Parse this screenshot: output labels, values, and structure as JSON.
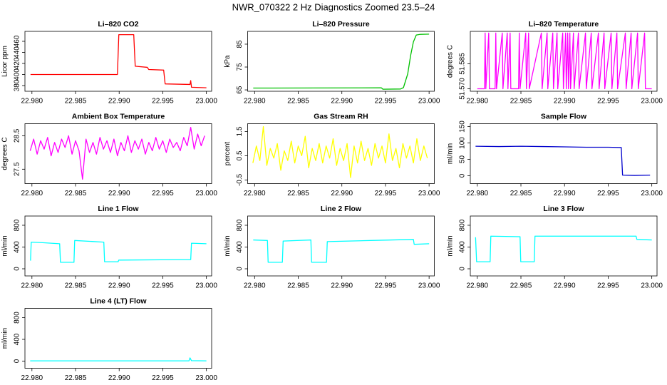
{
  "title": "NWR_070322  2 Hz Diagnostics Zoomed 23.5–24",
  "chart_data": [
    {
      "type": "line",
      "title": "Li–820 CO2",
      "ylabel": "Licor ppm",
      "color": "#ff0000",
      "x": [
        22.97984,
        22.98449,
        22.9898,
        22.98996,
        22.99167,
        22.99184,
        22.99322,
        22.99339,
        22.9951,
        22.99527,
        22.99812,
        22.9982,
        22.99829,
        23.0
      ],
      "values": [
        400,
        400,
        400,
        472,
        472,
        415,
        413,
        409,
        408,
        383,
        382,
        389,
        377,
        376
      ],
      "xlim": [
        22.9792,
        23.0006
      ],
      "ylim": [
        369.7,
        478
      ],
      "xticks": [
        {
          "value": 22.98,
          "label": "22.980"
        },
        {
          "value": 22.985,
          "label": "22.985"
        },
        {
          "value": 22.99,
          "label": "22.990"
        },
        {
          "value": 22.995,
          "label": "22.995"
        },
        {
          "value": 23.0,
          "label": "23.000"
        }
      ],
      "yticks": [
        380,
        400,
        420,
        440,
        460
      ]
    },
    {
      "type": "line",
      "title": "Li–820 Pressure",
      "ylabel": "kPa",
      "color": "#00c000",
      "x": [
        22.97984,
        22.99453,
        22.9947,
        22.99673,
        22.99706,
        22.99755,
        22.99788,
        22.9982,
        22.99853,
        22.99902,
        23.0
      ],
      "values": [
        65.8,
        65.9,
        65.3,
        65.4,
        66,
        72,
        80,
        86,
        89,
        89.3,
        89.4
      ],
      "xlim": [
        22.9792,
        23.0006
      ],
      "ylim": [
        64.4,
        90.6
      ],
      "xticks": [
        {
          "value": 22.98,
          "label": "22.980"
        },
        {
          "value": 22.985,
          "label": "22.985"
        },
        {
          "value": 22.99,
          "label": "22.990"
        },
        {
          "value": 22.995,
          "label": "22.995"
        },
        {
          "value": 23.0,
          "label": "23.000"
        }
      ],
      "yticks": [
        65,
        75,
        85
      ]
    },
    {
      "type": "line",
      "title": "Li–820 Temperature",
      "ylabel": "degrees C",
      "color": "#ff00ff",
      "x": [
        22.98,
        22.98082,
        22.9809,
        22.98098,
        22.98131,
        22.98139,
        22.98204,
        22.98212,
        22.9822,
        22.98286,
        22.98294,
        22.98343,
        22.98351,
        22.98376,
        22.98384,
        22.98473,
        22.98481,
        22.9849,
        22.98555,
        22.98563,
        22.98588,
        22.98596,
        22.98734,
        22.98743,
        22.988,
        22.98808,
        22.98865,
        22.98873,
        22.98914,
        22.98922,
        22.98979,
        22.98987,
        22.99012,
        22.9902,
        22.99036,
        22.99045,
        22.99061,
        22.99069,
        22.99102,
        22.9911,
        22.99159,
        22.99167,
        22.9924,
        22.99249,
        22.99306,
        22.99314,
        22.99388,
        22.99396,
        22.99453,
        22.99461,
        22.99534,
        22.99543,
        22.996,
        22.99608,
        22.99697,
        22.99706,
        22.99763,
        22.99771,
        22.99837,
        22.99845,
        22.99918,
        22.99927,
        23.0
      ],
      "values": [
        51.57,
        51.57,
        51.6035,
        51.57,
        51.6035,
        51.57,
        51.57,
        51.6035,
        51.57,
        51.6035,
        51.57,
        51.6035,
        51.57,
        51.6035,
        51.57,
        51.57,
        51.6035,
        51.57,
        51.6035,
        51.57,
        51.6035,
        51.57,
        51.6035,
        51.57,
        51.6035,
        51.57,
        51.6035,
        51.57,
        51.6035,
        51.57,
        51.6035,
        51.57,
        51.6035,
        51.57,
        51.6035,
        51.57,
        51.6035,
        51.57,
        51.6035,
        51.57,
        51.6035,
        51.57,
        51.6035,
        51.57,
        51.6035,
        51.57,
        51.6035,
        51.57,
        51.6035,
        51.57,
        51.6035,
        51.57,
        51.6035,
        51.57,
        51.6035,
        51.57,
        51.6035,
        51.57,
        51.6035,
        51.57,
        51.6035,
        51.57,
        51.57
      ],
      "xlim": [
        22.9792,
        23.0006
      ],
      "ylim": [
        51.5685,
        51.6045
      ],
      "xticks": [
        {
          "value": 22.98,
          "label": "22.980"
        },
        {
          "value": 22.985,
          "label": "22.985"
        },
        {
          "value": 22.99,
          "label": "22.990"
        },
        {
          "value": 22.995,
          "label": "22.995"
        },
        {
          "value": 23.0,
          "label": "23.000"
        }
      ],
      "yticks": [
        {
          "value": 51.57,
          "label": "51.570"
        },
        {
          "value": 51.585,
          "label": "51.585"
        }
      ]
    },
    {
      "type": "line",
      "title": "Ambient Box Temperature",
      "ylabel": "degrees C",
      "color": "#ff00ff",
      "x": [
        22.9798,
        22.9802,
        22.9806,
        22.981,
        22.9814,
        22.9818,
        22.9822,
        22.9826,
        22.983,
        22.9834,
        22.9838,
        22.9842,
        22.9846,
        22.985,
        22.9854,
        22.9858,
        22.9862,
        22.9866,
        22.987,
        22.9874,
        22.9878,
        22.9882,
        22.9886,
        22.989,
        22.9894,
        22.9898,
        22.9902,
        22.9906,
        22.991,
        22.9914,
        22.9918,
        22.9922,
        22.9926,
        22.993,
        22.9934,
        22.9938,
        22.9942,
        22.9946,
        22.995,
        22.9954,
        22.9958,
        22.9962,
        22.9966,
        22.997,
        22.9974,
        22.9978,
        22.9982,
        22.9986,
        22.999,
        22.9994,
        22.9998
      ],
      "values": [
        28.05,
        28.4,
        27.95,
        28.35,
        28.1,
        28.45,
        27.9,
        28.3,
        28.0,
        28.4,
        28.15,
        28.5,
        27.95,
        28.35,
        28.05,
        27.2,
        28.4,
        28.0,
        28.3,
        27.95,
        28.45,
        28.1,
        28.35,
        28.0,
        28.4,
        27.9,
        28.3,
        28.05,
        28.5,
        28.0,
        28.35,
        28.1,
        28.4,
        27.95,
        28.3,
        28.05,
        28.45,
        28.1,
        28.35,
        28.0,
        28.4,
        28.15,
        28.3,
        28.05,
        28.45,
        28.2,
        28.75,
        28.1,
        28.55,
        28.2,
        28.5
      ],
      "xlim": [
        22.9792,
        23.0006
      ],
      "ylim": [
        27.07,
        28.86
      ],
      "xticks": [
        {
          "value": 22.98,
          "label": "22.980"
        },
        {
          "value": 22.985,
          "label": "22.985"
        },
        {
          "value": 22.99,
          "label": "22.990"
        },
        {
          "value": 22.995,
          "label": "22.995"
        },
        {
          "value": 23.0,
          "label": "23.000"
        }
      ],
      "yticks": [
        27.5,
        28.5
      ]
    },
    {
      "type": "line",
      "title": "Gas Stream RH",
      "ylabel": "percent",
      "color": "#ffff00",
      "x": [
        22.9798,
        22.9802,
        22.9806,
        22.981,
        22.9814,
        22.9818,
        22.9822,
        22.9826,
        22.983,
        22.9834,
        22.9838,
        22.9842,
        22.9846,
        22.985,
        22.9854,
        22.9858,
        22.9862,
        22.9866,
        22.987,
        22.9874,
        22.9878,
        22.9882,
        22.9886,
        22.989,
        22.9894,
        22.9898,
        22.9902,
        22.9906,
        22.991,
        22.9914,
        22.9918,
        22.9922,
        22.9926,
        22.993,
        22.9934,
        22.9938,
        22.9942,
        22.9946,
        22.995,
        22.9954,
        22.9958,
        22.9962,
        22.9966,
        22.997,
        22.9974,
        22.9978,
        22.9982,
        22.9986,
        22.999,
        22.9994,
        22.9998
      ],
      "values": [
        0.2,
        0.9,
        0.3,
        1.7,
        0.1,
        0.8,
        0.4,
        1.0,
        -0.1,
        0.7,
        0.3,
        1.1,
        0.2,
        0.9,
        0.5,
        1.3,
        0.0,
        0.8,
        0.3,
        1.0,
        0.2,
        0.9,
        0.4,
        1.2,
        0.1,
        0.8,
        0.3,
        1.0,
        -0.4,
        0.9,
        0.2,
        1.1,
        0.3,
        0.8,
        0.1,
        1.0,
        0.4,
        0.9,
        0.2,
        1.4,
        0.3,
        0.8,
        0.0,
        1.0,
        0.4,
        0.9,
        0.2,
        1.2,
        0.3,
        0.9,
        0.4
      ],
      "xlim": [
        22.9792,
        23.0006
      ],
      "ylim": [
        -0.65,
        1.82
      ],
      "xticks": [
        {
          "value": 22.98,
          "label": "22.980"
        },
        {
          "value": 22.985,
          "label": "22.985"
        },
        {
          "value": 22.99,
          "label": "22.990"
        },
        {
          "value": 22.995,
          "label": "22.995"
        },
        {
          "value": 23.0,
          "label": "23.000"
        }
      ],
      "yticks": [
        -0.5,
        0.5,
        1.5
      ]
    },
    {
      "type": "line",
      "title": "Sample Flow",
      "ylabel": "ml/min",
      "color": "#0000cc",
      "x": [
        22.9798,
        22.9825,
        22.985,
        22.9875,
        22.99,
        22.9925,
        22.995,
        22.9965,
        22.99665,
        22.998,
        22.9998
      ],
      "values": [
        90,
        89,
        90,
        89,
        88,
        87,
        87,
        86,
        2,
        1,
        2
      ],
      "xlim": [
        22.9792,
        23.0006
      ],
      "ylim": [
        -23.9,
        158.7
      ],
      "xticks": [
        {
          "value": 22.98,
          "label": "22.980"
        },
        {
          "value": 22.985,
          "label": "22.985"
        },
        {
          "value": 22.99,
          "label": "22.990"
        },
        {
          "value": 22.995,
          "label": "22.995"
        },
        {
          "value": 23.0,
          "label": "23.000"
        }
      ],
      "yticks": [
        0,
        50,
        100,
        150
      ]
    },
    {
      "type": "line",
      "title": "Line 1 Flow",
      "ylabel": "ml/min",
      "color": "#00ffff",
      "x": [
        22.97984,
        22.97992,
        22.98122,
        22.98318,
        22.98327,
        22.98482,
        22.9849,
        22.98824,
        22.98833,
        22.98988,
        22.98996,
        22.9982,
        22.99829,
        23.0
      ],
      "values": [
        150,
        490,
        480,
        460,
        120,
        120,
        520,
        490,
        130,
        130,
        160,
        170,
        470,
        460
      ],
      "xlim": [
        22.9792,
        23.0006
      ],
      "ylim": [
        -131,
        970
      ],
      "xticks": [
        {
          "value": 22.98,
          "label": "22.980"
        },
        {
          "value": 22.985,
          "label": "22.985"
        },
        {
          "value": 22.99,
          "label": "22.990"
        },
        {
          "value": 22.995,
          "label": "22.995"
        },
        {
          "value": 23.0,
          "label": "23.000"
        }
      ],
      "yticks": [
        0,
        400,
        800
      ]
    },
    {
      "type": "line",
      "title": "Line 2 Flow",
      "ylabel": "ml/min",
      "color": "#00ffff",
      "x": [
        22.97984,
        22.98147,
        22.98155,
        22.98318,
        22.98327,
        22.98645,
        22.98653,
        22.98824,
        22.98833,
        22.99331,
        22.9982,
        22.99829,
        23.0
      ],
      "values": [
        530,
        520,
        120,
        120,
        510,
        530,
        120,
        120,
        500,
        520,
        540,
        450,
        460
      ],
      "xlim": [
        22.9792,
        23.0006
      ],
      "ylim": [
        -131,
        970
      ],
      "xticks": [
        {
          "value": 22.98,
          "label": "22.980"
        },
        {
          "value": 22.985,
          "label": "22.985"
        },
        {
          "value": 22.99,
          "label": "22.990"
        },
        {
          "value": 22.995,
          "label": "22.995"
        },
        {
          "value": 23.0,
          "label": "23.000"
        }
      ],
      "yticks": [
        0,
        400,
        800
      ]
    },
    {
      "type": "line",
      "title": "Line 3 Flow",
      "ylabel": "ml/min",
      "color": "#00ffff",
      "x": [
        22.9798,
        22.97992,
        22.98147,
        22.98155,
        22.9849,
        22.98498,
        22.98653,
        22.98661,
        22.9982,
        22.99829,
        23.0
      ],
      "values": [
        580,
        130,
        130,
        600,
        590,
        130,
        130,
        600,
        600,
        540,
        530
      ],
      "xlim": [
        22.9792,
        23.0006
      ],
      "ylim": [
        -131,
        970
      ],
      "xticks": [
        {
          "value": 22.98,
          "label": "22.980"
        },
        {
          "value": 22.985,
          "label": "22.985"
        },
        {
          "value": 22.99,
          "label": "22.990"
        },
        {
          "value": 22.995,
          "label": "22.995"
        },
        {
          "value": 23.0,
          "label": "23.000"
        }
      ],
      "yticks": [
        0,
        400,
        800
      ]
    },
    {
      "type": "line",
      "title": "Line 4 (LT) Flow",
      "ylabel": "ml/min",
      "color": "#00ffff",
      "x": [
        22.9798,
        22.998,
        22.99812,
        22.99829,
        23.0
      ],
      "values": [
        5,
        5,
        60,
        8,
        5
      ],
      "xlim": [
        22.9792,
        23.0006
      ],
      "ylim": [
        -131,
        970
      ],
      "xticks": [
        {
          "value": 22.98,
          "label": "22.980"
        },
        {
          "value": 22.985,
          "label": "22.985"
        },
        {
          "value": 22.99,
          "label": "22.990"
        },
        {
          "value": 22.995,
          "label": "22.995"
        },
        {
          "value": 23.0,
          "label": "23.000"
        }
      ],
      "yticks": [
        0,
        400,
        800
      ]
    }
  ]
}
